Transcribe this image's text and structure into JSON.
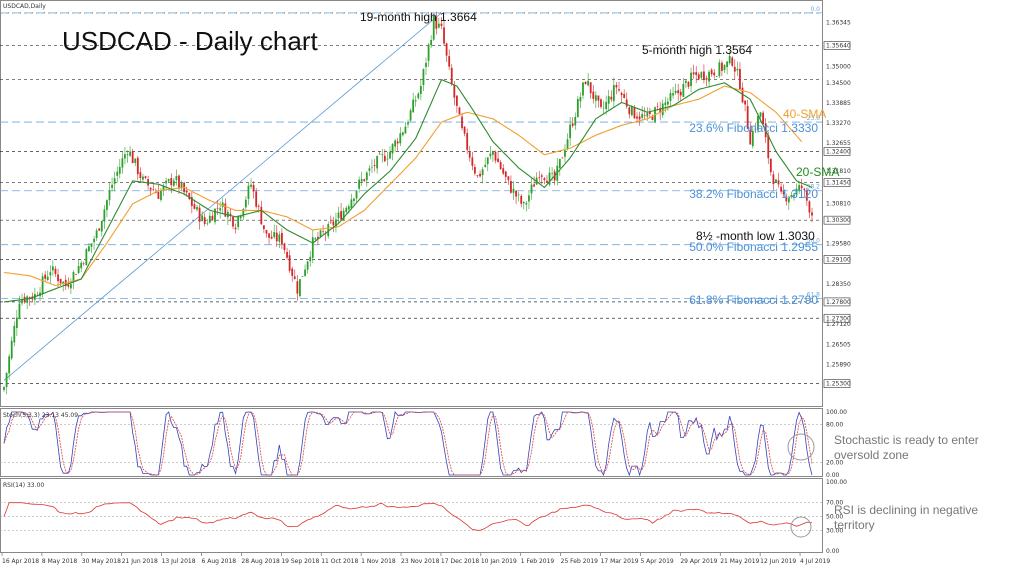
{
  "chart_data": [
    {
      "type": "candlestick",
      "symbol_label": "USDCAD,Daily",
      "title": "USDCAD - Daily chart",
      "ylim": [
        1.248,
        1.3685
      ],
      "y_tick_labels": [
        "1.36960",
        "1.36345",
        "1.35640",
        "1.35000",
        "1.34500",
        "1.33885",
        "1.33270",
        "1.32655",
        "1.32400",
        "1.31810",
        "1.31450",
        "1.30810",
        "1.30300",
        "1.29580",
        "1.29100",
        "1.28350",
        "1.27800",
        "1.27300",
        "1.27120",
        "1.26505",
        "1.25890",
        "1.25300"
      ],
      "x_tick_labels": [
        "16 Apr 2018",
        "8 May 2018",
        "30 May 2018",
        "21 Jun 2018",
        "13 Jul 2018",
        "6 Aug 2018",
        "28 Aug 2018",
        "19 Sep 2018",
        "11 Oct 2018",
        "1 Nov 2018",
        "23 Nov 2018",
        "17 Dec 2018",
        "10 Jan 2019",
        "1 Feb 2019",
        "25 Feb 2019",
        "17 Mar 2019",
        "5 Apr 2019",
        "29 Apr 2019",
        "21 May 2019",
        "12 Jun 2019",
        "4 Jul 2019"
      ],
      "close_path": [
        [
          0,
          1.252
        ],
        [
          6,
          1.279
        ],
        [
          12,
          1.28
        ],
        [
          18,
          1.288
        ],
        [
          24,
          1.283
        ],
        [
          30,
          1.29
        ],
        [
          36,
          1.299
        ],
        [
          42,
          1.314
        ],
        [
          48,
          1.325
        ],
        [
          54,
          1.315
        ],
        [
          60,
          1.311
        ],
        [
          66,
          1.316
        ],
        [
          72,
          1.309
        ],
        [
          78,
          1.302
        ],
        [
          84,
          1.308
        ],
        [
          90,
          1.302
        ],
        [
          96,
          1.314
        ],
        [
          102,
          1.298
        ],
        [
          108,
          1.297
        ],
        [
          114,
          1.282
        ],
        [
          120,
          1.296
        ],
        [
          126,
          1.3
        ],
        [
          132,
          1.306
        ],
        [
          138,
          1.314
        ],
        [
          144,
          1.32
        ],
        [
          150,
          1.324
        ],
        [
          156,
          1.332
        ],
        [
          162,
          1.344
        ],
        [
          167,
          1.364
        ],
        [
          170,
          1.361
        ],
        [
          174,
          1.344
        ],
        [
          178,
          1.33
        ],
        [
          184,
          1.316
        ],
        [
          190,
          1.324
        ],
        [
          196,
          1.314
        ],
        [
          202,
          1.307
        ],
        [
          208,
          1.318
        ],
        [
          214,
          1.315
        ],
        [
          220,
          1.331
        ],
        [
          226,
          1.346
        ],
        [
          232,
          1.336
        ],
        [
          238,
          1.344
        ],
        [
          244,
          1.336
        ],
        [
          250,
          1.334
        ],
        [
          256,
          1.338
        ],
        [
          262,
          1.342
        ],
        [
          268,
          1.347
        ],
        [
          274,
          1.348
        ],
        [
          280,
          1.35
        ],
        [
          283,
          1.352
        ],
        [
          286,
          1.345
        ],
        [
          290,
          1.328
        ],
        [
          294,
          1.336
        ],
        [
          298,
          1.318
        ],
        [
          302,
          1.31
        ],
        [
          306,
          1.311
        ],
        [
          310,
          1.313
        ],
        [
          314,
          1.305
        ]
      ],
      "sma20_path": [
        [
          0,
          1.278
        ],
        [
          10,
          1.279
        ],
        [
          20,
          1.282
        ],
        [
          30,
          1.285
        ],
        [
          40,
          1.3
        ],
        [
          50,
          1.315
        ],
        [
          60,
          1.314
        ],
        [
          70,
          1.311
        ],
        [
          80,
          1.306
        ],
        [
          90,
          1.304
        ],
        [
          100,
          1.306
        ],
        [
          110,
          1.3
        ],
        [
          120,
          1.296
        ],
        [
          130,
          1.302
        ],
        [
          140,
          1.311
        ],
        [
          150,
          1.318
        ],
        [
          160,
          1.328
        ],
        [
          170,
          1.346
        ],
        [
          176,
          1.344
        ],
        [
          182,
          1.337
        ],
        [
          190,
          1.327
        ],
        [
          200,
          1.319
        ],
        [
          210,
          1.313
        ],
        [
          220,
          1.322
        ],
        [
          230,
          1.334
        ],
        [
          240,
          1.339
        ],
        [
          250,
          1.336
        ],
        [
          260,
          1.338
        ],
        [
          270,
          1.343
        ],
        [
          280,
          1.345
        ],
        [
          290,
          1.34
        ],
        [
          300,
          1.324
        ],
        [
          308,
          1.315
        ],
        [
          314,
          1.313
        ]
      ],
      "sma40_path": [
        [
          0,
          1.287
        ],
        [
          10,
          1.286
        ],
        [
          20,
          1.283
        ],
        [
          30,
          1.285
        ],
        [
          40,
          1.296
        ],
        [
          50,
          1.308
        ],
        [
          60,
          1.312
        ],
        [
          70,
          1.313
        ],
        [
          80,
          1.309
        ],
        [
          90,
          1.306
        ],
        [
          100,
          1.306
        ],
        [
          110,
          1.304
        ],
        [
          120,
          1.3
        ],
        [
          130,
          1.301
        ],
        [
          140,
          1.306
        ],
        [
          150,
          1.314
        ],
        [
          160,
          1.322
        ],
        [
          170,
          1.333
        ],
        [
          180,
          1.336
        ],
        [
          190,
          1.334
        ],
        [
          200,
          1.329
        ],
        [
          210,
          1.323
        ],
        [
          220,
          1.325
        ],
        [
          230,
          1.329
        ],
        [
          240,
          1.332
        ],
        [
          250,
          1.334
        ],
        [
          260,
          1.338
        ],
        [
          270,
          1.34
        ],
        [
          280,
          1.344
        ],
        [
          290,
          1.342
        ],
        [
          300,
          1.336
        ],
        [
          310,
          1.327
        ]
      ],
      "trendline": [
        [
          0,
          1.254
        ],
        [
          170,
          1.3664
        ]
      ],
      "horizontal_levels": [
        1.3664,
        1.3564,
        1.346,
        1.324,
        1.3145,
        1.303,
        1.291,
        1.278,
        1.273,
        1.253
      ],
      "fibonacci_levels": [
        {
          "label": "23.6% Fibonacci 1.3330",
          "short": "23.6",
          "value": 1.333
        },
        {
          "label": "38.2% Fibonacci 1.3120",
          "short": "38.2",
          "value": 1.312
        },
        {
          "label": "50.0% Fibonacci 1.2955",
          "short": "50.0",
          "value": 1.2955
        },
        {
          "label": "61.8% Fibonacci 1.2790",
          "short": "61.8",
          "value": 1.279
        },
        {
          "label": "",
          "short": "0.0",
          "value": 1.3664
        }
      ],
      "annotations": {
        "high19": "19-month high 1.3664",
        "high5": "5-month high 1.3564",
        "low8": "8½ -month low 1.3030",
        "sma40": "40-SMA",
        "sma20": "20-SMA"
      }
    },
    {
      "type": "line",
      "label": "Stoch(5,3,3) 23.13 45.09",
      "ylim": [
        0,
        100
      ],
      "y_tick_labels": [
        "100.00",
        "80.00",
        "20.00",
        "0.00"
      ],
      "comment": "Stochastic is ready to enter oversold zone"
    },
    {
      "type": "line",
      "label": "RSI(14) 33.00",
      "ylim": [
        0,
        100
      ],
      "y_tick_labels": [
        "100.00",
        "70.00",
        "50.00",
        "30.00",
        "0.00"
      ],
      "comment": "RSI is declining in negative territory"
    }
  ],
  "colors": {
    "bull": "#2ca02c",
    "bear": "#d62728",
    "sma20": "#2e8b2e",
    "sma40": "#f0a030",
    "fib": "#6fa8dc",
    "trend": "#5b9bd5",
    "stoch_main": "#3344bb",
    "stoch_signal": "#dd4444",
    "rsi": "#dd3333"
  }
}
